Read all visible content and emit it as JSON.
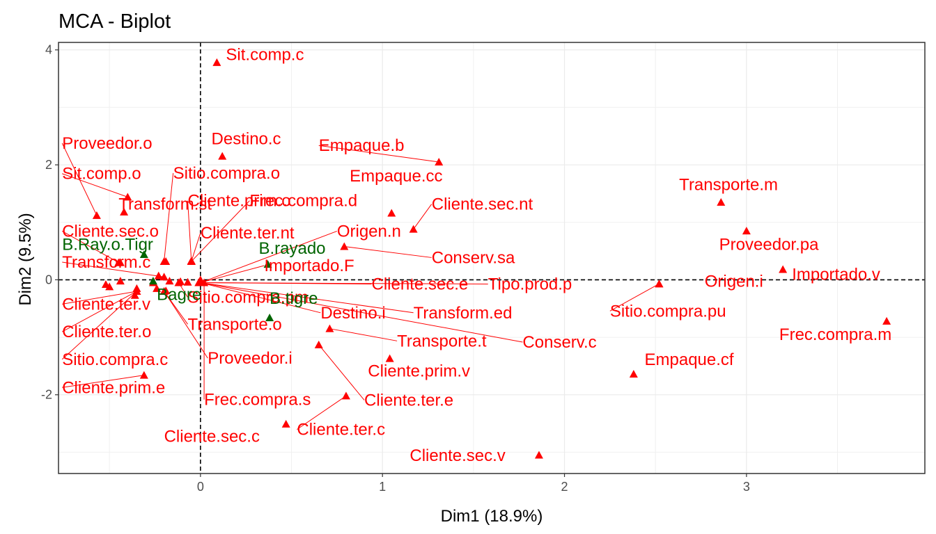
{
  "chart_data": {
    "type": "scatter",
    "title": "MCA - Biplot",
    "xlabel": "Dim1 (18.9%)",
    "ylabel": "Dim2 (9.5%)",
    "xlim": [
      -0.78,
      3.98
    ],
    "ylim": [
      -3.37,
      4.13
    ],
    "xticks": [
      0,
      1,
      2,
      3
    ],
    "yticks": [
      -2,
      0,
      2,
      4
    ],
    "grid": true,
    "reference_lines": {
      "x": 0,
      "y": 0,
      "style": "dashed"
    },
    "colors": {
      "variables": "#ff0000",
      "supplementary": "#006400"
    },
    "series": [
      {
        "color": "#ff0000",
        "points": [
          {
            "label": "Sit.comp.c",
            "x": 0.09,
            "y": 3.78,
            "lx": 0.14,
            "ly": 3.82,
            "leader": false
          },
          {
            "label": "Destino.c",
            "x": 0.12,
            "y": 2.15,
            "lx": 0.06,
            "ly": 2.36,
            "leader": false
          },
          {
            "label": "Empaque.b",
            "x": 1.31,
            "y": 2.05,
            "lx": 0.65,
            "ly": 2.24,
            "leader": true
          },
          {
            "label": "Empaque.cc",
            "x": 1.05,
            "y": 1.16,
            "lx": 0.82,
            "ly": 1.71,
            "leader": false
          },
          {
            "label": "Cliente.sec.nt",
            "x": 1.17,
            "y": 0.88,
            "lx": 1.27,
            "ly": 1.22,
            "leader": true
          },
          {
            "label": "Transporte.m",
            "x": 2.86,
            "y": 1.35,
            "lx": 2.63,
            "ly": 1.56,
            "leader": false
          },
          {
            "label": "Proveedor.pa",
            "x": 3.0,
            "y": 0.85,
            "lx": 2.85,
            "ly": 0.52,
            "leader": false
          },
          {
            "label": "Importado.v",
            "x": 3.2,
            "y": 0.18,
            "lx": 3.25,
            "ly": 0.0,
            "leader": false
          },
          {
            "label": "Origen.i",
            "x": 2.52,
            "y": -0.07,
            "lx": 2.77,
            "ly": -0.12,
            "leader": false
          },
          {
            "label": "Sitio.compra.pu",
            "x": 2.52,
            "y": -0.07,
            "lx": 2.25,
            "ly": -0.64,
            "leader": true
          },
          {
            "label": "Frec.compra.m",
            "x": 3.77,
            "y": -0.72,
            "lx": 3.18,
            "ly": -1.05,
            "leader": false
          },
          {
            "label": "Empaque.cf",
            "x": 2.38,
            "y": -1.64,
            "lx": 2.44,
            "ly": -1.48,
            "leader": false
          },
          {
            "label": "Cliente.sec.v",
            "x": 1.86,
            "y": -3.05,
            "lx": 1.15,
            "ly": -3.15,
            "leader": false
          },
          {
            "label": "Cliente.ter.c",
            "x": 0.8,
            "y": -2.02,
            "lx": 0.53,
            "ly": -2.7,
            "leader": true
          },
          {
            "label": "Cliente.ter.e",
            "x": 0.65,
            "y": -1.13,
            "lx": 0.9,
            "ly": -2.19,
            "leader": true
          },
          {
            "label": "Cliente.sec.c",
            "x": 0.47,
            "y": -2.51,
            "lx": -0.2,
            "ly": -2.82,
            "leader": false
          },
          {
            "label": "Cliente.prim.v",
            "x": 1.04,
            "y": -1.37,
            "lx": 0.92,
            "ly": -1.68,
            "leader": false
          },
          {
            "label": "Transporte.t",
            "x": 0.71,
            "y": -0.85,
            "lx": 1.08,
            "ly": -1.16,
            "leader": true
          },
          {
            "label": "Conserv.c",
            "x": 0.0,
            "y": -0.05,
            "lx": 1.77,
            "ly": -1.18,
            "leader": true
          },
          {
            "label": "Transform.ed",
            "x": 0.0,
            "y": -0.05,
            "lx": 1.17,
            "ly": -0.67,
            "leader": true
          },
          {
            "label": "Destino.i",
            "x": 0.0,
            "y": -0.05,
            "lx": 0.66,
            "ly": -0.67,
            "leader": true
          },
          {
            "label": "Tipo.prod.p",
            "x": 0.0,
            "y": -0.05,
            "lx": 1.58,
            "ly": -0.17,
            "leader": true
          },
          {
            "label": "Cliente.sec.e",
            "x": 0.0,
            "y": -0.05,
            "lx": 0.94,
            "ly": -0.17,
            "leader": true
          },
          {
            "label": "Conserv.sa",
            "x": 0.79,
            "y": 0.58,
            "lx": 1.27,
            "ly": 0.29,
            "leader": true
          },
          {
            "label": "Origen.n",
            "x": 0.0,
            "y": -0.05,
            "lx": 0.75,
            "ly": 0.75,
            "leader": true
          },
          {
            "label": "Importado.F",
            "x": 0.0,
            "y": -0.05,
            "lx": 0.35,
            "ly": 0.15,
            "leader": true
          },
          {
            "label": "Cliente.ter.nt",
            "x": -0.05,
            "y": 0.32,
            "lx": 0.0,
            "ly": 0.72,
            "leader": true
          },
          {
            "label": "Cliente.prim.o",
            "x": -0.05,
            "y": 0.32,
            "lx": -0.07,
            "ly": 1.28,
            "leader": true
          },
          {
            "label": "Frec.compra.d",
            "x": -0.05,
            "y": 0.32,
            "lx": 0.27,
            "ly": 1.28,
            "leader": true
          },
          {
            "label": "Sitio.compra.o",
            "x": -0.2,
            "y": 0.32,
            "lx": -0.15,
            "ly": 1.76,
            "leader": true
          },
          {
            "label": "Transform.st",
            "x": -0.42,
            "y": 1.18,
            "lx": -0.45,
            "ly": 1.22,
            "leader": false
          },
          {
            "label": "Proveedor.o",
            "x": -0.57,
            "y": 1.12,
            "lx": -0.76,
            "ly": 2.28,
            "leader": true
          },
          {
            "label": "Sit.comp.o",
            "x": -0.4,
            "y": 1.44,
            "lx": -0.76,
            "ly": 1.75,
            "leader": true
          },
          {
            "label": "Cliente.sec.o",
            "x": -0.45,
            "y": 0.3,
            "lx": -0.76,
            "ly": 0.75,
            "leader": true
          },
          {
            "label": "Transform.c",
            "x": -0.2,
            "y": 0.05,
            "lx": -0.76,
            "ly": 0.21,
            "leader": true
          },
          {
            "label": "Cliente.ter.v",
            "x": -0.35,
            "y": -0.2,
            "lx": -0.76,
            "ly": -0.52,
            "leader": true
          },
          {
            "label": "Cliente.ter.o",
            "x": -0.35,
            "y": -0.2,
            "lx": -0.76,
            "ly": -1.0,
            "leader": true
          },
          {
            "label": "Sitio.compra.c",
            "x": -0.35,
            "y": -0.2,
            "lx": -0.76,
            "ly": -1.48,
            "leader": true
          },
          {
            "label": "Cliente.prim.e",
            "x": -0.31,
            "y": -1.66,
            "lx": -0.76,
            "ly": -1.97,
            "leader": true
          },
          {
            "label": "Sitio.compra.pm",
            "x": -0.12,
            "y": -0.05,
            "lx": -0.07,
            "ly": -0.4,
            "leader": true
          },
          {
            "label": "Transporte.o",
            "x": -0.2,
            "y": -0.2,
            "lx": -0.07,
            "ly": -0.87,
            "leader": true
          },
          {
            "label": "Proveedor.i",
            "x": -0.2,
            "y": -0.2,
            "lx": 0.04,
            "ly": -1.46,
            "leader": true
          },
          {
            "label": "Frec.compra.s",
            "x": 0.02,
            "y": -0.05,
            "lx": 0.02,
            "ly": -2.18,
            "leader": true
          },
          {
            "label": "",
            "x": -0.52,
            "y": -0.08,
            "leader": false
          },
          {
            "label": "",
            "x": -0.5,
            "y": -0.12,
            "leader": false
          },
          {
            "label": "",
            "x": -0.44,
            "y": 0.3,
            "leader": false
          },
          {
            "label": "",
            "x": -0.44,
            "y": -0.02,
            "leader": false
          },
          {
            "label": "",
            "x": -0.35,
            "y": -0.15,
            "leader": false
          },
          {
            "label": "",
            "x": -0.36,
            "y": -0.27,
            "leader": false
          },
          {
            "label": "",
            "x": -0.26,
            "y": -0.05,
            "leader": false
          },
          {
            "label": "",
            "x": -0.23,
            "y": 0.07,
            "leader": false
          },
          {
            "label": "",
            "x": -0.19,
            "y": 0.32,
            "leader": false
          },
          {
            "label": "",
            "x": -0.17,
            "y": -0.02,
            "leader": false
          },
          {
            "label": "",
            "x": -0.11,
            "y": -0.03,
            "leader": false
          },
          {
            "label": "",
            "x": -0.07,
            "y": -0.04,
            "leader": false
          },
          {
            "label": "",
            "x": -0.05,
            "y": 0.33,
            "leader": false
          },
          {
            "label": "",
            "x": -0.01,
            "y": -0.05,
            "leader": false
          },
          {
            "label": "",
            "x": 0.0,
            "y": 0.0,
            "leader": false
          },
          {
            "label": "",
            "x": -0.24,
            "y": -0.15,
            "leader": false
          },
          {
            "label": "",
            "x": -0.19,
            "y": -0.19,
            "leader": false
          }
        ]
      },
      {
        "color": "#006400",
        "points": [
          {
            "label": "B.Ray.o.Tigr",
            "x": -0.31,
            "y": 0.44,
            "lx": -0.76,
            "ly": 0.52,
            "leader": false
          },
          {
            "label": "B.rayado",
            "x": 0.37,
            "y": 0.27,
            "lx": 0.32,
            "ly": 0.45,
            "leader": false
          },
          {
            "label": "B.tigre",
            "x": 0.38,
            "y": -0.66,
            "lx": 0.38,
            "ly": -0.42,
            "leader": false
          },
          {
            "label": "Bagre",
            "x": -0.26,
            "y": -0.02,
            "lx": -0.24,
            "ly": -0.35,
            "leader": false
          }
        ]
      }
    ]
  }
}
